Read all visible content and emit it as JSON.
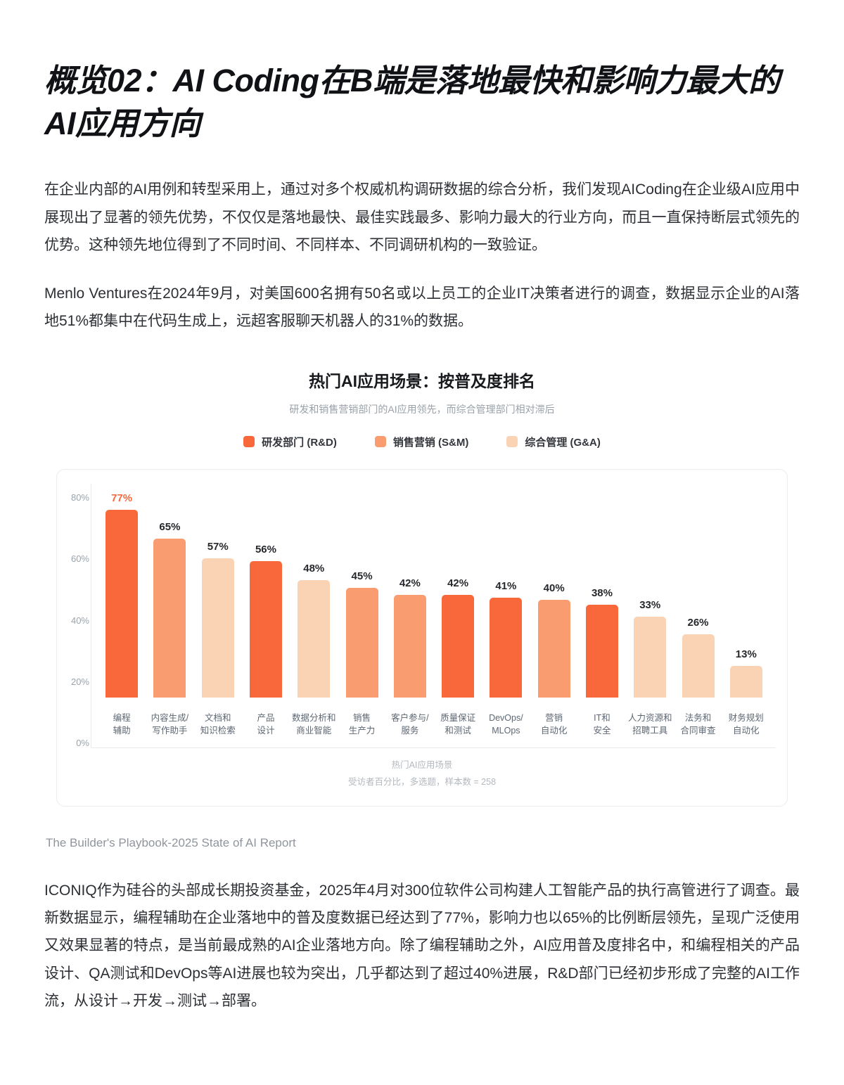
{
  "page": {
    "title": "概览02：AI Coding在B端是落地最快和影响力最大的AI应用方向",
    "paragraphs": [
      "在企业内部的AI用例和转型采用上，通过对多个权威机构调研数据的综合分析，我们发现AICoding在企业级AI应用中展现出了显著的领先优势，不仅仅是落地最快、最佳实践最多、影响力最大的行业方向，而且一直保持断层式领先的优势。这种领先地位得到了不同时间、不同样本、不同调研机构的一致验证。",
      "Menlo Ventures在2024年9月，对美国600名拥有50名或以上员工的企业IT决策者进行的调查，数据显示企业的AI落地51%都集中在代码生成上，远超客服聊天机器人的31%的数据。",
      "ICONIQ作为硅谷的头部成长期投资基金，2025年4月对300位软件公司构建人工智能产品的执行高管进行了调查。最新数据显示，编程辅助在企业落地中的普及度数据已经达到了77%，影响力也以65%的比例断层领先，呈现广泛使用又效果显著的特点，是当前最成熟的AI企业落地方向。除了编程辅助之外，AI应用普及度排名中，和编程相关的产品设计、QA测试和DevOps等AI进展也较为突出，几乎都达到了超过40%进展，R&D部门已经初步形成了完整的AI工作流，从设计→开发→测试→部署。"
    ],
    "source_caption": "The Builder's Playbook-2025 State of AI Report"
  },
  "chart_data": {
    "type": "bar",
    "title": "热门AI应用场景：按普及度排名",
    "subtitle": "研发和销售营销部门的AI应用领先，而综合管理部门相对滞后",
    "legend_position": "top",
    "grid": false,
    "ylim": [
      0,
      80
    ],
    "y_ticks": [
      "80%",
      "60%",
      "40%",
      "20%",
      "0%"
    ],
    "x_axis_title": "热门AI应用场景",
    "footnote": "受访者百分比，多选题，样本数 = 258",
    "series": [
      {
        "key": "rd",
        "name": "研发部门 (R&D)",
        "color": "#F8683A"
      },
      {
        "key": "sm",
        "name": "销售营销 (S&M)",
        "color": "#F99D70"
      },
      {
        "key": "ga",
        "name": "综合管理 (G&A)",
        "color": "#FAD3B5"
      }
    ],
    "bars": [
      {
        "category": "编程辅助",
        "lines": [
          "编程",
          "辅助"
        ],
        "value": 77,
        "series": "rd",
        "value_color": "#F8683A"
      },
      {
        "category": "内容生成/写作助手",
        "lines": [
          "内容生成/",
          "写作助手"
        ],
        "value": 65,
        "series": "sm"
      },
      {
        "category": "文档和知识检索",
        "lines": [
          "文档和",
          "知识检索"
        ],
        "value": 57,
        "series": "ga"
      },
      {
        "category": "产品设计",
        "lines": [
          "产品",
          "设计"
        ],
        "value": 56,
        "series": "rd"
      },
      {
        "category": "数据分析和商业智能",
        "lines": [
          "数据分析和",
          "商业智能"
        ],
        "value": 48,
        "series": "ga"
      },
      {
        "category": "销售生产力",
        "lines": [
          "销售",
          "生产力"
        ],
        "value": 45,
        "series": "sm"
      },
      {
        "category": "客户参与/服务",
        "lines": [
          "客户参与/",
          "服务"
        ],
        "value": 42,
        "series": "sm"
      },
      {
        "category": "质量保证和测试",
        "lines": [
          "质量保证",
          "和测试"
        ],
        "value": 42,
        "series": "rd"
      },
      {
        "category": "DevOps/MLOps",
        "lines": [
          "DevOps/",
          "MLOps"
        ],
        "value": 41,
        "series": "rd"
      },
      {
        "category": "营销自动化",
        "lines": [
          "营销",
          "自动化"
        ],
        "value": 40,
        "series": "sm"
      },
      {
        "category": "IT和安全",
        "lines": [
          "IT和",
          "安全"
        ],
        "value": 38,
        "series": "rd"
      },
      {
        "category": "人力资源和招聘工具",
        "lines": [
          "人力资源和",
          "招聘工具"
        ],
        "value": 33,
        "series": "ga"
      },
      {
        "category": "法务和合同审查",
        "lines": [
          "法务和",
          "合同审查"
        ],
        "value": 26,
        "series": "ga"
      },
      {
        "category": "财务规划自动化",
        "lines": [
          "财务规划",
          "自动化"
        ],
        "value": 13,
        "series": "ga"
      }
    ]
  }
}
